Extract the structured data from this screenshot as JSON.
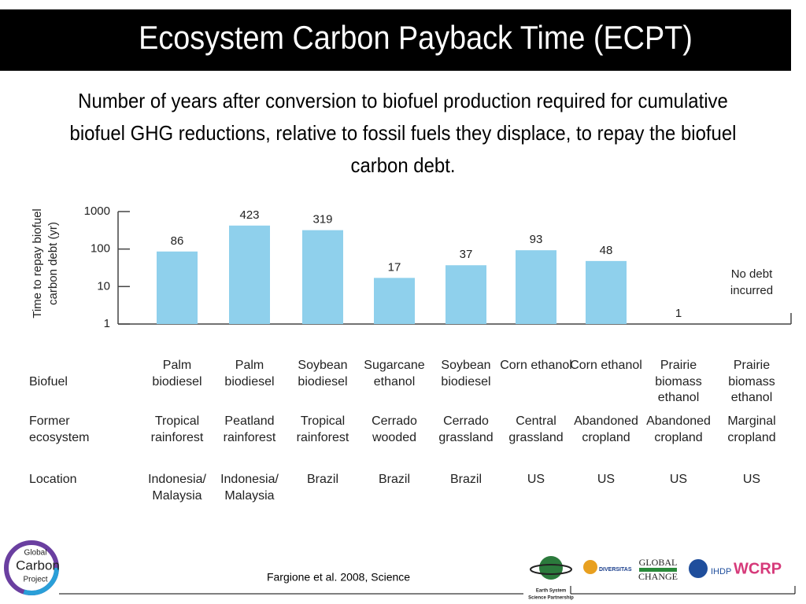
{
  "chart_data": {
    "type": "bar",
    "title": "Ecosystem Carbon Payback Time (ECPT)",
    "subtitle": "Number of years after conversion to biofuel production required for cumulative biofuel GHG reductions, relative to fossil fuels they displace, to repay the biofuel carbon debt.",
    "ylabel": "Time to repay biofuel carbon debt (yr)",
    "log_scale": true,
    "ylim": [
      1,
      1000
    ],
    "yticks": [
      1,
      10,
      100,
      1000
    ],
    "color": "#8fd0ec",
    "categories": [
      "Palm biodiesel",
      "Palm biodiesel",
      "Soybean biodiesel",
      "Sugarcane ethanol",
      "Soybean biodiesel",
      "Corn ethanol",
      "Corn ethanol",
      "Prairie biomass ethanol",
      "Prairie biomass ethanol"
    ],
    "values": [
      86,
      423,
      319,
      17,
      37,
      93,
      48,
      1,
      null
    ],
    "annotation": "No debt incurred",
    "row_labels": [
      "Biofuel",
      "Former ecosystem",
      "Location"
    ],
    "ecosystems": [
      "Tropical rainforest",
      "Peatland rainforest",
      "Tropical rainforest",
      "Cerrado wooded",
      "Cerrado grassland",
      "Central grassland",
      "Abandoned cropland",
      "Abandoned cropland",
      "Marginal cropland"
    ],
    "locations": [
      "Indonesia/ Malaysia",
      "Indonesia/ Malaysia",
      "Brazil",
      "Brazil",
      "Brazil",
      "US",
      "US",
      "US",
      "US"
    ],
    "source": "Fargione et al. 2008, Science"
  },
  "logos": {
    "gcp": [
      "Global",
      "Carbon",
      "Project"
    ],
    "essp": [
      "Earth System",
      "Science Partnership"
    ],
    "diversitas": "DIVERSITAS",
    "igbp": [
      "GLOBAL",
      "CHANGE"
    ],
    "ihdp": "IHDP",
    "wcrp": "WCRP"
  }
}
